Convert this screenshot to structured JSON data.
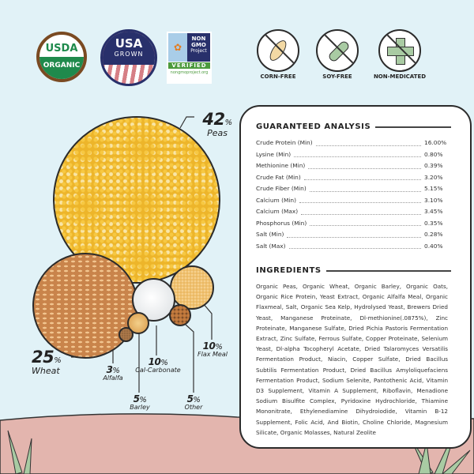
{
  "badges": {
    "usda": {
      "line1": "USDA",
      "line2": "ORGANIC"
    },
    "usa_grown": {
      "line1": "USA",
      "line2": "GROWN"
    },
    "non_gmo": {
      "line1": "NON",
      "line2": "GMO",
      "line3": "Project",
      "verified": "VERIFIED",
      "url": "nongmoproject.org"
    },
    "corn_free": "CORN-FREE",
    "soy_free": "SOY-FREE",
    "non_medicated": "NON-MEDICATED"
  },
  "composition": [
    {
      "pct": "42",
      "name": "Peas"
    },
    {
      "pct": "25",
      "name": "Wheat"
    },
    {
      "pct": "10",
      "name": "Flax Meal"
    },
    {
      "pct": "10",
      "name": "Cal-Carbonate"
    },
    {
      "pct": "3",
      "name": "Alfalfa"
    },
    {
      "pct": "5",
      "name": "Barley"
    },
    {
      "pct": "5",
      "name": "Other"
    }
  ],
  "percent_sign": "%",
  "analysis": {
    "title": "GUARANTEED ANALYSIS",
    "rows": [
      {
        "label": "Crude Protein (Min)",
        "value": "16.00%"
      },
      {
        "label": "Lysine (Min)",
        "value": "0.80%"
      },
      {
        "label": "Methionine (Min)",
        "value": "0.39%"
      },
      {
        "label": "Crude Fat (Min)",
        "value": "3.20%"
      },
      {
        "label": "Crude Fiber (Min)",
        "value": "5.15%"
      },
      {
        "label": "Calcium (Min)",
        "value": "3.10%"
      },
      {
        "label": "Calcium (Max)",
        "value": "3.45%"
      },
      {
        "label": "Phosphorus (Min)",
        "value": "0.35%"
      },
      {
        "label": "Salt (Min)",
        "value": "0.28%"
      },
      {
        "label": "Salt (Max)",
        "value": "0.40%"
      }
    ]
  },
  "ingredients": {
    "title": "INGREDIENTS",
    "text": "Organic Peas, Organic Wheat, Organic Barley, Organic Oats, Organic Rice Protein, Yeast Extract, Organic Alfalfa Meal, Organic Flaxmeal, Salt, Organic Sea Kelp, Hydrolysed Yeast, Brewers Dried Yeast, Manganese Proteinate, Dl-methionine(.0875%), Zinc Proteinate, Manganese Sulfate, Dried Pichia Pastoris Fermentation Extract, Zinc Sulfate, Ferrous Sulfate, Copper Proteinate, Selenium Yeast, Dl-alpha Tocopheryl Acetate, Dried Talaromyces Versatilis Fermentation Product, Niacin, Copper Sulfate, Dried Bacillus Subtilis Fermentation Product, Dried Bacillus Amyloliquefaciens Fermentation Product, Sodium Selenite, Pantothenic Acid, Vitamin D3 Supplement, Vitamin A Supplement, Riboflavin, Menadione Sodium Bisulfite Complex, Pyridoxine Hydrochloride, Thiamine Mononitrate, Ethylenediamine Dihydroiodide, Vitamin B-12 Supplement, Folic Acid, And Biotin, Choline Chloride, Magnesium Silicate, Organic Molasses, Natural Zeolite"
  },
  "colors": {
    "background": "#e1f2f7",
    "ground": "#e3b5ae",
    "usda_green": "#1f8a4c",
    "usa_navy": "#28306b",
    "plant": "#a9cba3"
  }
}
